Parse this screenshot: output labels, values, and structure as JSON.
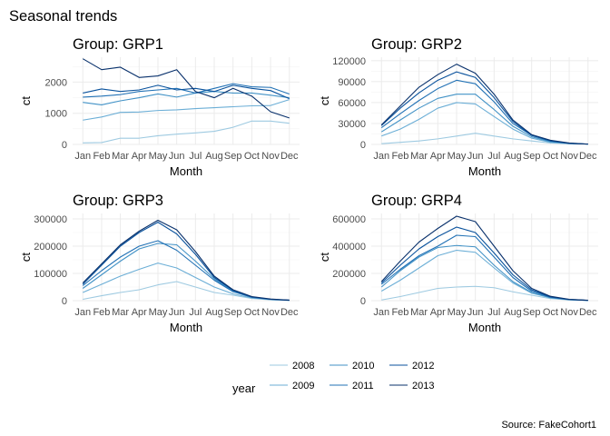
{
  "title": "Seasonal trends",
  "caption": "Source: FakeCohort1",
  "legend": {
    "title": "year",
    "position": "bottom"
  },
  "years": [
    "2008",
    "2009",
    "2010",
    "2011",
    "2012",
    "2013"
  ],
  "colors": {
    "2008": "#9ecae1",
    "2009": "#6baed6",
    "2010": "#4292c6",
    "2011": "#2171b5",
    "2012": "#08519c",
    "2013": "#08306b"
  },
  "chart_data": [
    {
      "type": "line",
      "title": "Group: GRP1",
      "xlabel": "Month",
      "ylabel": "ct",
      "categories": [
        "Jan",
        "Feb",
        "Mar",
        "Apr",
        "May",
        "Jun",
        "Jul",
        "Aug",
        "Sep",
        "Oct",
        "Nov",
        "Dec"
      ],
      "ylim": [
        0,
        2800
      ],
      "yticks": [
        0,
        1000,
        2000
      ],
      "yticklabels": [
        "0",
        "1000",
        "2000"
      ],
      "grid": true,
      "series": [
        {
          "name": "2008",
          "values": [
            50,
            60,
            200,
            200,
            280,
            330,
            370,
            420,
            550,
            750,
            750,
            680
          ]
        },
        {
          "name": "2009",
          "values": [
            780,
            880,
            1030,
            1040,
            1090,
            1110,
            1150,
            1180,
            1210,
            1240,
            1250,
            1440
          ]
        },
        {
          "name": "2010",
          "values": [
            1350,
            1270,
            1400,
            1500,
            1620,
            1520,
            1650,
            1700,
            1650,
            1650,
            1580,
            1500
          ]
        },
        {
          "name": "2011",
          "values": [
            1520,
            1550,
            1600,
            1700,
            1750,
            1800,
            1650,
            1800,
            1950,
            1850,
            1830,
            1620
          ]
        },
        {
          "name": "2012",
          "values": [
            1650,
            1780,
            1700,
            1750,
            1900,
            1750,
            1800,
            1700,
            1900,
            1800,
            1730,
            1470
          ]
        },
        {
          "name": "2013",
          "values": [
            2750,
            2400,
            2480,
            2150,
            2200,
            2400,
            1700,
            1500,
            1800,
            1550,
            1050,
            850
          ]
        }
      ]
    },
    {
      "type": "line",
      "title": "Group: GRP2",
      "xlabel": "Month",
      "ylabel": "ct",
      "categories": [
        "Jan",
        "Feb",
        "Mar",
        "Apr",
        "May",
        "Jun",
        "Jul",
        "Aug",
        "Sep",
        "Oct",
        "Nov",
        "Dec"
      ],
      "ylim": [
        0,
        125000
      ],
      "yticks": [
        0,
        30000,
        60000,
        90000,
        120000
      ],
      "yticklabels": [
        "0",
        "30000",
        "60000",
        "90000",
        "120000"
      ],
      "grid": true,
      "series": [
        {
          "name": "2008",
          "values": [
            1000,
            3000,
            5000,
            8000,
            12000,
            16000,
            12000,
            8000,
            5000,
            2000,
            1000,
            500
          ]
        },
        {
          "name": "2009",
          "values": [
            12000,
            22000,
            36000,
            52000,
            60000,
            58000,
            40000,
            22000,
            9000,
            3000,
            1000,
            500
          ]
        },
        {
          "name": "2010",
          "values": [
            18000,
            35000,
            52000,
            66000,
            72000,
            72000,
            50000,
            26000,
            11000,
            4000,
            1500,
            500
          ]
        },
        {
          "name": "2011",
          "values": [
            24000,
            44000,
            63000,
            80000,
            92000,
            87000,
            61000,
            30000,
            13000,
            5000,
            1500,
            500
          ]
        },
        {
          "name": "2012",
          "values": [
            27000,
            52000,
            74000,
            92000,
            104000,
            96000,
            67000,
            33000,
            13000,
            5000,
            1500,
            500
          ]
        },
        {
          "name": "2013",
          "values": [
            28000,
            55000,
            82000,
            100000,
            115000,
            102000,
            72000,
            35000,
            14000,
            6000,
            2000,
            500
          ]
        }
      ]
    },
    {
      "type": "line",
      "title": "Group: GRP3",
      "xlabel": "Month",
      "ylabel": "ct",
      "categories": [
        "Jan",
        "Feb",
        "Mar",
        "Apr",
        "May",
        "Jun",
        "Jul",
        "Aug",
        "Sep",
        "Oct",
        "Nov",
        "Dec"
      ],
      "ylim": [
        0,
        320000
      ],
      "yticks": [
        0,
        100000,
        200000,
        300000
      ],
      "yticklabels": [
        "0",
        "100000",
        "200000",
        "300000"
      ],
      "grid": true,
      "series": [
        {
          "name": "2008",
          "values": [
            5000,
            18000,
            30000,
            40000,
            58000,
            70000,
            50000,
            30000,
            20000,
            8000,
            3000,
            1000
          ]
        },
        {
          "name": "2009",
          "values": [
            30000,
            60000,
            90000,
            115000,
            138000,
            120000,
            85000,
            50000,
            25000,
            10000,
            4000,
            1000
          ]
        },
        {
          "name": "2010",
          "values": [
            45000,
            95000,
            145000,
            190000,
            210000,
            205000,
            145000,
            80000,
            35000,
            13000,
            5000,
            1500
          ]
        },
        {
          "name": "2011",
          "values": [
            55000,
            110000,
            160000,
            200000,
            220000,
            185000,
            130000,
            75000,
            33000,
            12000,
            5000,
            1500
          ]
        },
        {
          "name": "2012",
          "values": [
            60000,
            130000,
            200000,
            250000,
            288000,
            245000,
            170000,
            85000,
            38000,
            14000,
            5000,
            2000
          ]
        },
        {
          "name": "2013",
          "values": [
            65000,
            135000,
            205000,
            255000,
            295000,
            260000,
            180000,
            90000,
            40000,
            15000,
            6000,
            2000
          ]
        }
      ]
    },
    {
      "type": "line",
      "title": "Group: GRP4",
      "xlabel": "Month",
      "ylabel": "ct",
      "categories": [
        "Jan",
        "Feb",
        "Mar",
        "Apr",
        "May",
        "Jun",
        "Jul",
        "Aug",
        "Sep",
        "Oct",
        "Nov",
        "Dec"
      ],
      "ylim": [
        0,
        640000
      ],
      "yticks": [
        0,
        200000,
        400000,
        600000
      ],
      "yticklabels": [
        "0",
        "200000",
        "400000",
        "600000"
      ],
      "grid": true,
      "series": [
        {
          "name": "2008",
          "values": [
            5000,
            30000,
            60000,
            90000,
            100000,
            105000,
            95000,
            65000,
            40000,
            15000,
            5000,
            2000
          ]
        },
        {
          "name": "2009",
          "values": [
            70000,
            150000,
            240000,
            330000,
            370000,
            355000,
            240000,
            130000,
            55000,
            20000,
            7000,
            2000
          ]
        },
        {
          "name": "2010",
          "values": [
            100000,
            220000,
            320000,
            390000,
            405000,
            395000,
            260000,
            140000,
            60000,
            22000,
            7000,
            2000
          ]
        },
        {
          "name": "2011",
          "values": [
            120000,
            230000,
            330000,
            400000,
            480000,
            470000,
            320000,
            170000,
            70000,
            25000,
            8000,
            2000
          ]
        },
        {
          "name": "2012",
          "values": [
            130000,
            260000,
            380000,
            470000,
            540000,
            500000,
            350000,
            190000,
            80000,
            28000,
            9000,
            2500
          ]
        },
        {
          "name": "2013",
          "values": [
            140000,
            290000,
            430000,
            530000,
            620000,
            580000,
            400000,
            220000,
            90000,
            32000,
            10000,
            3000
          ]
        }
      ]
    }
  ]
}
